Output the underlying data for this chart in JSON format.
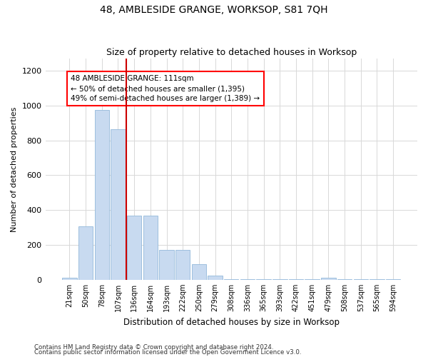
{
  "title": "48, AMBLESIDE GRANGE, WORKSOP, S81 7QH",
  "subtitle": "Size of property relative to detached houses in Worksop",
  "xlabel": "Distribution of detached houses by size in Worksop",
  "ylabel": "Number of detached properties",
  "footnote1": "Contains HM Land Registry data © Crown copyright and database right 2024.",
  "footnote2": "Contains public sector information licensed under the Open Government Licence v3.0.",
  "annotation_line1": "48 AMBLESIDE GRANGE: 111sqm",
  "annotation_line2": "← 50% of detached houses are smaller (1,395)",
  "annotation_line3": "49% of semi-detached houses are larger (1,389) →",
  "bar_color": "#c8daf0",
  "bar_edge_color": "#92b8da",
  "red_line_color": "#cc0000",
  "grid_color": "#d8d8d8",
  "categories": [
    "21sqm",
    "50sqm",
    "78sqm",
    "107sqm",
    "136sqm",
    "164sqm",
    "193sqm",
    "222sqm",
    "250sqm",
    "279sqm",
    "308sqm",
    "336sqm",
    "365sqm",
    "393sqm",
    "422sqm",
    "451sqm",
    "479sqm",
    "508sqm",
    "537sqm",
    "565sqm",
    "594sqm"
  ],
  "values": [
    10,
    305,
    975,
    865,
    370,
    370,
    170,
    170,
    90,
    25,
    5,
    2,
    2,
    2,
    2,
    2,
    12,
    2,
    2,
    2,
    2
  ],
  "ylim": [
    0,
    1270
  ],
  "yticks": [
    0,
    200,
    400,
    600,
    800,
    1000,
    1200
  ],
  "red_line_x": 3.5,
  "background_color": "#ffffff"
}
